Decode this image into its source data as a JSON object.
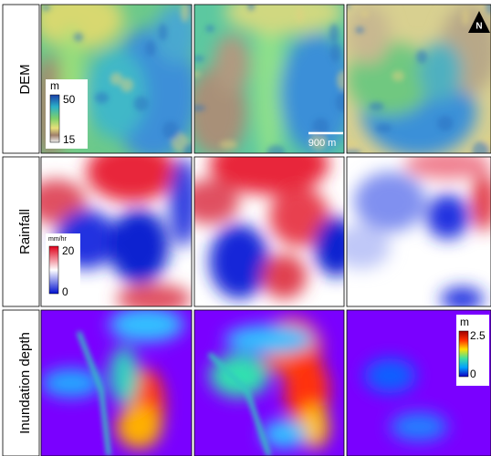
{
  "rows": [
    {
      "label": "DEM"
    },
    {
      "label": "Rainfall"
    },
    {
      "label": "Inundation depth"
    }
  ],
  "legends": [
    {
      "unit": "m",
      "max": 50,
      "min": 15
    },
    {
      "unit": "mm/hr",
      "max": 20,
      "min": 0
    },
    {
      "unit": "m",
      "max": 2.5,
      "min": 0
    }
  ],
  "scale_bar": "900 m",
  "north_arrow": "N"
}
